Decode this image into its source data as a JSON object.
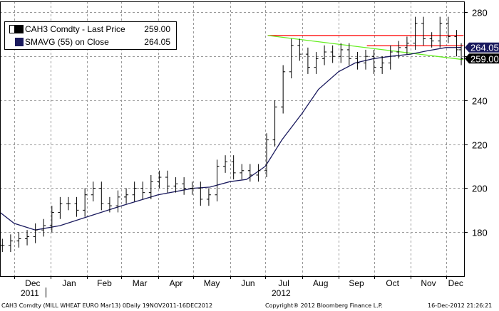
{
  "legend": {
    "rows": [
      {
        "label": "CAH3 Comdty  - Last Price",
        "value": "259.00",
        "color": "#000000"
      },
      {
        "label": "SMAVG (55) on Close",
        "value": "264.05",
        "color": "#1a1a5e"
      }
    ]
  },
  "tags": [
    {
      "text": "264.05",
      "y": 264.05,
      "bg": "#1a1a5e"
    },
    {
      "text": "259.00",
      "y": 259.0,
      "bg": "#000000"
    }
  ],
  "footer": {
    "left": "CAH3 Comdty (MILL WHEAT EURO  Mar13) 0Daily 19NOV2011-16DEC2012",
    "center": "Copyright® 2012 Bloomberg Finance L.P.",
    "right": "16-Dec-2012 21:26:21"
  },
  "chart_data": {
    "type": "line",
    "title": "",
    "xlabel": "",
    "ylabel": "",
    "ylim": [
      160,
      285
    ],
    "yticks": [
      180,
      200,
      220,
      240,
      260,
      280
    ],
    "grid": true,
    "x_unit": "date",
    "month_ticks": [
      {
        "label": "Dec",
        "date": "2011-12-01"
      },
      {
        "label": "Jan",
        "date": "2012-01-01"
      },
      {
        "label": "Feb",
        "date": "2012-02-01"
      },
      {
        "label": "Mar",
        "date": "2012-03-01"
      },
      {
        "label": "Apr",
        "date": "2012-04-01"
      },
      {
        "label": "May",
        "date": "2012-05-01"
      },
      {
        "label": "Jun",
        "date": "2012-06-01"
      },
      {
        "label": "Jul",
        "date": "2012-07-01"
      },
      {
        "label": "Aug",
        "date": "2012-08-01"
      },
      {
        "label": "Sep",
        "date": "2012-09-01"
      },
      {
        "label": "Oct",
        "date": "2012-10-01"
      },
      {
        "label": "Nov",
        "date": "2012-11-01"
      },
      {
        "label": "Dec",
        "date": "2012-12-01"
      }
    ],
    "year_labels": [
      {
        "label": "2011",
        "date": "2011-12-01"
      },
      {
        "label": "2012",
        "date": "2012-07-01"
      }
    ],
    "series": [
      {
        "name": "CAH3 Comdty  - Last Price",
        "color": "#000000",
        "style": "bars",
        "points": [
          [
            "2011-11-21",
            174
          ],
          [
            "2011-11-28",
            176
          ],
          [
            "2011-12-05",
            177
          ],
          [
            "2011-12-12",
            178
          ],
          [
            "2011-12-19",
            181
          ],
          [
            "2011-12-26",
            183
          ],
          [
            "2012-01-02",
            189
          ],
          [
            "2012-01-09",
            193
          ],
          [
            "2012-01-16",
            193
          ],
          [
            "2012-01-23",
            190
          ],
          [
            "2012-01-30",
            197
          ],
          [
            "2012-02-06",
            200
          ],
          [
            "2012-02-13",
            193
          ],
          [
            "2012-02-20",
            192
          ],
          [
            "2012-02-27",
            196
          ],
          [
            "2012-03-05",
            197
          ],
          [
            "2012-03-12",
            200
          ],
          [
            "2012-03-19",
            198
          ],
          [
            "2012-03-26",
            203
          ],
          [
            "2012-04-02",
            205
          ],
          [
            "2012-04-09",
            201
          ],
          [
            "2012-04-16",
            202
          ],
          [
            "2012-04-23",
            200
          ],
          [
            "2012-04-30",
            200
          ],
          [
            "2012-05-07",
            195
          ],
          [
            "2012-05-14",
            197
          ],
          [
            "2012-05-21",
            210
          ],
          [
            "2012-05-28",
            212
          ],
          [
            "2012-06-04",
            207
          ],
          [
            "2012-06-11",
            208
          ],
          [
            "2012-06-18",
            206
          ],
          [
            "2012-06-25",
            208
          ],
          [
            "2012-07-02",
            222
          ],
          [
            "2012-07-09",
            237
          ],
          [
            "2012-07-16",
            253
          ],
          [
            "2012-07-23",
            265
          ],
          [
            "2012-07-30",
            261
          ],
          [
            "2012-08-06",
            255
          ],
          [
            "2012-08-13",
            259
          ],
          [
            "2012-08-20",
            262
          ],
          [
            "2012-08-27",
            260
          ],
          [
            "2012-09-03",
            263
          ],
          [
            "2012-09-10",
            259
          ],
          [
            "2012-09-17",
            257
          ],
          [
            "2012-09-24",
            260
          ],
          [
            "2012-10-01",
            255
          ],
          [
            "2012-10-08",
            257
          ],
          [
            "2012-10-15",
            262
          ],
          [
            "2012-10-22",
            264
          ],
          [
            "2012-10-29",
            266
          ],
          [
            "2012-11-05",
            275
          ],
          [
            "2012-11-12",
            268
          ],
          [
            "2012-11-19",
            267
          ],
          [
            "2012-11-26",
            275
          ],
          [
            "2012-12-03",
            269
          ],
          [
            "2012-12-10",
            263
          ],
          [
            "2012-12-14",
            259
          ]
        ]
      },
      {
        "name": "SMAVG (55) on Close",
        "color": "#1a1a5e",
        "style": "line",
        "points": [
          [
            "2011-11-19",
            189
          ],
          [
            "2011-12-01",
            184
          ],
          [
            "2011-12-19",
            181
          ],
          [
            "2012-01-09",
            183
          ],
          [
            "2012-02-01",
            187
          ],
          [
            "2012-03-01",
            192
          ],
          [
            "2012-04-01",
            197
          ],
          [
            "2012-05-01",
            200
          ],
          [
            "2012-05-15",
            200.5
          ],
          [
            "2012-06-01",
            203
          ],
          [
            "2012-06-15",
            204
          ],
          [
            "2012-07-01",
            210
          ],
          [
            "2012-07-15",
            222
          ],
          [
            "2012-08-01",
            234
          ],
          [
            "2012-08-15",
            245
          ],
          [
            "2012-09-01",
            253
          ],
          [
            "2012-09-15",
            257
          ],
          [
            "2012-10-01",
            259
          ],
          [
            "2012-10-15",
            260
          ],
          [
            "2012-11-01",
            261
          ],
          [
            "2012-11-15",
            262.5
          ],
          [
            "2012-12-01",
            264
          ],
          [
            "2012-12-14",
            264.05
          ]
        ]
      }
    ],
    "trendlines": [
      {
        "color": "#ff0000",
        "points": [
          [
            "2012-07-03",
            269.5
          ],
          [
            "2012-12-16",
            269.5
          ]
        ]
      },
      {
        "color": "#66ee22",
        "points": [
          [
            "2012-07-03",
            269.5
          ],
          [
            "2012-12-16",
            258.5
          ]
        ]
      },
      {
        "color": "#ff0000",
        "points": [
          [
            "2012-09-25",
            264.8
          ],
          [
            "2012-12-16",
            264.8
          ]
        ]
      }
    ]
  }
}
